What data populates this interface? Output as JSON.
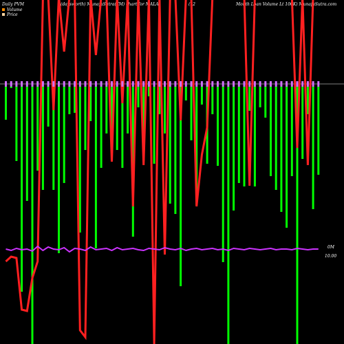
{
  "header": {
    "left": "Daily PVM",
    "center": "(daysworth) MunafaSutra(TM) chart for MALA",
    "mid": "(12",
    "right": "Month Loan Volume   Lt 100K) MunafaSutra.com"
  },
  "legend": [
    {
      "label": "Volume",
      "color": "#ff8c00"
    },
    {
      "label": "Price",
      "color": "#ffd4a0"
    }
  ],
  "axis": {
    "volume_label": "0M",
    "price_label": "10.00"
  },
  "colors": {
    "up": "#00ff00",
    "down": "#ff2020",
    "price_line": "#cc33ff",
    "price_marker": "#d070ff",
    "baseline": "#808080",
    "background": "#000000"
  },
  "chart_data": {
    "type": "bar",
    "bars": [
      {
        "color": "green",
        "v": 48
      },
      {
        "color": "green",
        "v": 0
      },
      {
        "color": "red",
        "v": 0
      },
      {
        "color": "red",
        "v": 0
      },
      {
        "color": "green",
        "v": 108
      },
      {
        "color": "green",
        "v": 298
      },
      {
        "color": "green",
        "v": 166
      },
      {
        "color": "red",
        "v": 0
      },
      {
        "color": "green",
        "v": 378
      },
      {
        "color": "green",
        "v": 122
      },
      {
        "color": "green",
        "v": 150
      },
      {
        "color": "red",
        "v": 0
      },
      {
        "color": "green",
        "v": 58
      },
      {
        "color": "green",
        "v": 150
      },
      {
        "color": "red",
        "v": 0
      },
      {
        "color": "green",
        "v": 242
      },
      {
        "color": "green",
        "v": 140
      },
      {
        "color": "green",
        "v": 40
      },
      {
        "color": "red",
        "v": 0
      },
      {
        "color": "red",
        "v": 0
      },
      {
        "color": "green",
        "v": 38
      },
      {
        "color": "green",
        "v": 212
      },
      {
        "color": "green",
        "v": 92
      },
      {
        "color": "green",
        "v": 50
      },
      {
        "color": "green",
        "v": 235
      },
      {
        "color": "red",
        "v": 0
      },
      {
        "color": "green",
        "v": 118
      },
      {
        "color": "green",
        "v": 68
      },
      {
        "color": "green",
        "v": 94
      },
      {
        "color": "green",
        "v": 92
      },
      {
        "color": "green",
        "v": 118
      },
      {
        "color": "red",
        "v": 0
      },
      {
        "color": "green",
        "v": 68
      },
      {
        "color": "green",
        "v": 218
      },
      {
        "color": "green",
        "v": 30
      },
      {
        "color": "green",
        "v": 108
      },
      {
        "color": "red",
        "v": 0
      },
      {
        "color": "green",
        "v": 14
      },
      {
        "color": "green",
        "v": 112
      },
      {
        "color": "red",
        "v": 0
      },
      {
        "color": "green",
        "v": 40
      },
      {
        "color": "red",
        "v": 0
      },
      {
        "color": "red",
        "v": 0
      },
      {
        "color": "green",
        "v": 68
      },
      {
        "color": "green",
        "v": 170
      },
      {
        "color": "green",
        "v": 185
      },
      {
        "color": "green",
        "v": 290
      },
      {
        "color": "red",
        "v": 0
      },
      {
        "color": "green",
        "v": 20
      },
      {
        "color": "green",
        "v": 78
      },
      {
        "color": "red",
        "v": 0
      },
      {
        "color": "red",
        "v": 0
      },
      {
        "color": "red",
        "v": 0
      },
      {
        "color": "green",
        "v": 172
      },
      {
        "color": "red",
        "v": 0
      },
      {
        "color": "green",
        "v": 26
      },
      {
        "color": "green",
        "v": 112
      },
      {
        "color": "green",
        "v": 40
      },
      {
        "color": "green",
        "v": 115
      },
      {
        "color": "green",
        "v": 255
      },
      {
        "color": "green",
        "v": 378
      },
      {
        "color": "green",
        "v": 180
      },
      {
        "color": "red",
        "v": 0
      },
      {
        "color": "green",
        "v": 140
      },
      {
        "color": "green",
        "v": 145
      },
      {
        "color": "green",
        "v": 35
      },
      {
        "color": "green",
        "v": 145
      },
      {
        "color": "green",
        "v": 30
      },
      {
        "color": "red",
        "v": 0
      },
      {
        "color": "green",
        "v": 45
      },
      {
        "color": "green",
        "v": 130
      },
      {
        "color": "green",
        "v": 150
      },
      {
        "color": "green",
        "v": 182
      },
      {
        "color": "green",
        "v": 205
      },
      {
        "color": "red",
        "v": 0
      },
      {
        "color": "green",
        "v": 130
      },
      {
        "color": "green",
        "v": 385
      },
      {
        "color": "green",
        "v": 105
      },
      {
        "color": "red",
        "v": 0
      },
      {
        "color": "green",
        "v": 40
      },
      {
        "color": "red",
        "v": 0
      },
      {
        "color": "red",
        "v": 0
      },
      {
        "color": "red",
        "v": 0
      },
      {
        "color": "green",
        "v": 178
      },
      {
        "color": "green",
        "v": 128
      },
      {
        "color": "red",
        "v": 0
      },
      {
        "color": "green",
        "v": 270
      },
      {
        "color": "red",
        "v": 0
      },
      {
        "color": "green",
        "v": 290
      },
      {
        "color": "green",
        "v": 290
      },
      {
        "color": "green",
        "v": 180
      },
      {
        "color": "green",
        "v": 290
      },
      {
        "color": "red",
        "v": 0
      },
      {
        "color": "red",
        "v": 0
      },
      {
        "color": "green",
        "v": 40
      },
      {
        "color": "red",
        "v": 0
      },
      {
        "color": "green",
        "v": 290
      },
      {
        "color": "green",
        "v": 290
      },
      {
        "color": "green",
        "v": 290
      },
      {
        "color": "green",
        "v": 290
      },
      {
        "color": "green",
        "v": 80
      },
      {
        "color": "green",
        "v": 30
      },
      {
        "color": "green",
        "v": 80
      },
      {
        "color": "green",
        "v": 40
      },
      {
        "color": "green",
        "v": 110
      },
      {
        "color": "green",
        "v": 60
      },
      {
        "color": "green",
        "v": 90
      },
      {
        "color": "green",
        "v": 45
      },
      {
        "color": "green",
        "v": 150
      },
      {
        "color": "green",
        "v": 150
      },
      {
        "color": "green",
        "v": 40
      },
      {
        "color": "green",
        "v": 290
      }
    ],
    "price_line": [
      [
        0,
        122
      ],
      [
        4,
        122
      ],
      [
        8,
        115
      ],
      [
        12,
        90
      ],
      [
        16,
        70
      ],
      [
        20,
        90
      ],
      [
        24,
        122
      ],
      [
        28,
        122
      ],
      [
        32,
        122
      ],
      [
        36,
        122
      ],
      [
        40,
        122
      ],
      [
        44,
        122
      ],
      [
        48,
        122
      ],
      [
        52,
        122
      ],
      [
        56,
        122
      ],
      [
        60,
        122
      ],
      [
        64,
        122
      ],
      [
        68,
        122
      ],
      [
        72,
        122
      ],
      [
        76,
        122
      ],
      [
        80,
        122
      ],
      [
        84,
        122
      ],
      [
        88,
        122
      ],
      [
        92,
        122
      ],
      [
        96,
        122
      ],
      [
        100,
        122
      ],
      [
        104,
        122
      ],
      [
        108,
        122
      ],
      [
        112,
        122
      ],
      [
        116,
        122
      ],
      [
        120,
        122
      ],
      [
        124,
        122
      ],
      [
        128,
        122
      ],
      [
        132,
        122
      ],
      [
        136,
        122
      ],
      [
        140,
        122
      ],
      [
        144,
        122
      ],
      [
        148,
        122
      ],
      [
        152,
        122
      ],
      [
        156,
        122
      ],
      [
        160,
        122
      ],
      [
        164,
        122
      ],
      [
        168,
        122
      ],
      [
        172,
        122
      ],
      [
        176,
        122
      ],
      [
        180,
        122
      ],
      [
        184,
        122
      ],
      [
        188,
        122
      ],
      [
        192,
        122
      ],
      [
        196,
        122
      ],
      [
        200,
        122
      ],
      [
        204,
        122
      ],
      [
        208,
        122
      ],
      [
        212,
        122
      ],
      [
        216,
        122
      ],
      [
        220,
        122
      ],
      [
        224,
        122
      ],
      [
        228,
        122
      ],
      [
        232,
        122
      ],
      [
        236,
        122
      ],
      [
        240,
        122
      ],
      [
        244,
        122
      ],
      [
        248,
        122
      ],
      [
        252,
        122
      ],
      [
        256,
        122
      ],
      [
        260,
        122
      ],
      [
        264,
        122
      ],
      [
        268,
        122
      ],
      [
        272,
        122
      ],
      [
        276,
        122
      ],
      [
        280,
        122
      ],
      [
        284,
        122
      ],
      [
        288,
        122
      ],
      [
        292,
        122
      ],
      [
        296,
        122
      ],
      [
        300,
        122
      ],
      [
        304,
        122
      ],
      [
        308,
        122
      ],
      [
        312,
        122
      ],
      [
        316,
        122
      ],
      [
        320,
        122
      ],
      [
        324,
        122
      ],
      [
        328,
        122
      ],
      [
        332,
        122
      ],
      [
        336,
        122
      ],
      [
        340,
        122
      ],
      [
        344,
        122
      ],
      [
        348,
        122
      ],
      [
        352,
        122
      ],
      [
        356,
        122
      ],
      [
        360,
        122
      ],
      [
        364,
        122
      ],
      [
        368,
        122
      ],
      [
        372,
        122
      ],
      [
        376,
        122
      ],
      [
        380,
        122
      ],
      [
        384,
        122
      ],
      [
        388,
        122
      ],
      [
        392,
        122
      ],
      [
        396,
        122
      ],
      [
        400,
        122
      ],
      [
        404,
        122
      ],
      [
        408,
        122
      ],
      [
        412,
        122
      ],
      [
        416,
        122
      ],
      [
        420,
        122
      ],
      [
        424,
        122
      ],
      [
        428,
        122
      ],
      [
        432,
        122
      ],
      [
        436,
        122
      ],
      [
        440,
        122
      ],
      [
        444,
        122
      ],
      [
        448,
        122
      ]
    ]
  }
}
